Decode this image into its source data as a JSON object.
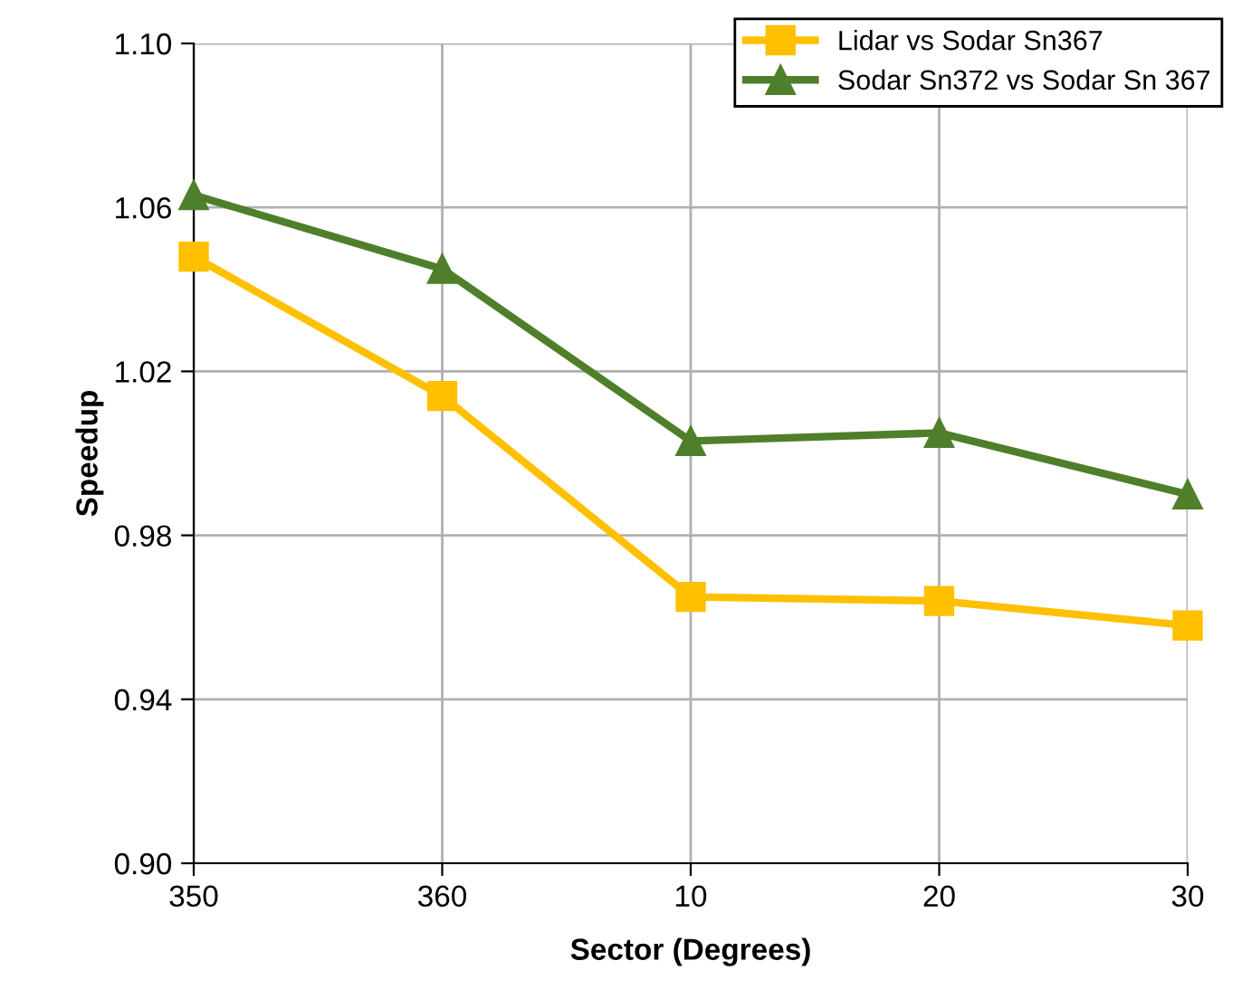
{
  "chart_data": {
    "type": "line",
    "xlabel": "Sector (Degrees)",
    "ylabel": "Speedup",
    "categories": [
      "350",
      "360",
      "10",
      "20",
      "30"
    ],
    "series": [
      {
        "name": "Lidar vs Sodar Sn367",
        "color": "#ffc000",
        "marker": "square",
        "values": [
          1.048,
          1.014,
          0.965,
          0.964,
          0.958
        ]
      },
      {
        "name": "Sodar Sn372 vs Sodar Sn 367",
        "color": "#4f7f2a",
        "marker": "triangle",
        "values": [
          1.063,
          1.045,
          1.003,
          1.005,
          0.99
        ]
      }
    ],
    "ylim": [
      0.9,
      1.1
    ],
    "yticks": [
      {
        "value": 0.9,
        "label": "0.90"
      },
      {
        "value": 0.94,
        "label": "0.94"
      },
      {
        "value": 0.98,
        "label": "0.98"
      },
      {
        "value": 1.02,
        "label": "1.02"
      },
      {
        "value": 1.06,
        "label": "1.06"
      },
      {
        "value": 1.1,
        "label": "1.10"
      }
    ],
    "grid": true,
    "legend": "top right"
  }
}
